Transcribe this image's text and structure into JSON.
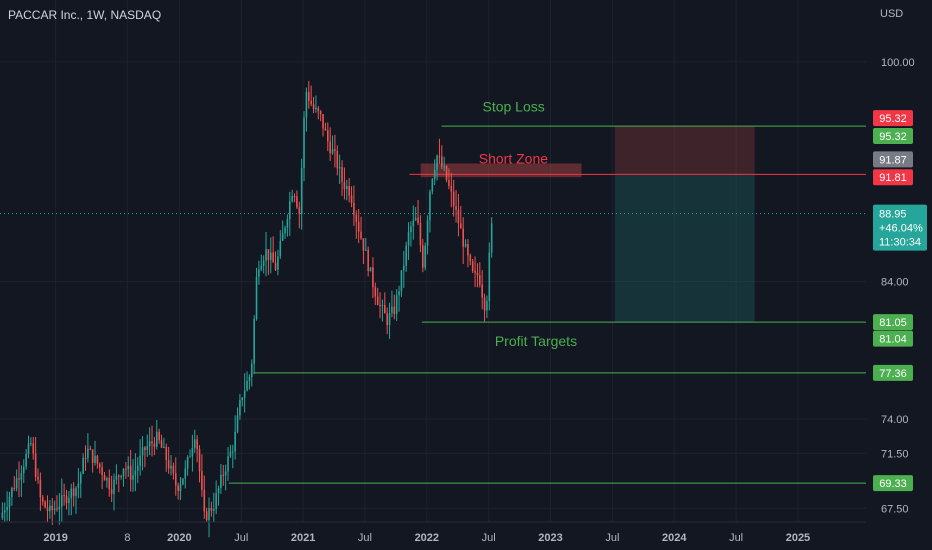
{
  "header": {
    "title": "PACCAR Inc., 1W, NASDAQ",
    "currency": "USD"
  },
  "colors": {
    "background": "#131722",
    "up": "#26a69a",
    "down": "#ef5350",
    "level_line": "#4caf50",
    "short_zone_line": "#f23645",
    "stop_label": "#f23645",
    "target_label": "#4caf50",
    "grey_label": "#787b86",
    "current_label": "#26a69a"
  },
  "chart_data": {
    "type": "candlestick",
    "y_axis": {
      "ticks": [
        {
          "value": 100.0,
          "label": "100.00"
        },
        {
          "value": 84.0,
          "label": "84.00"
        },
        {
          "value": 74.0,
          "label": "74.00"
        },
        {
          "value": 71.5,
          "label": "71.50"
        },
        {
          "value": 67.5,
          "label": "67.50"
        }
      ],
      "currency": "USD",
      "ylim": [
        66.5,
        104.5
      ]
    },
    "x_axis": {
      "ticks": [
        {
          "label": "2019",
          "year": 2019.0
        },
        {
          "label": "8",
          "year": 2019.58
        },
        {
          "label": "2020",
          "year": 2020.0
        },
        {
          "label": "Jul",
          "year": 2020.5
        },
        {
          "label": "2021",
          "year": 2021.0
        },
        {
          "label": "Jul",
          "year": 2021.5
        },
        {
          "label": "2022",
          "year": 2022.0
        },
        {
          "label": "Jul",
          "year": 2022.5
        },
        {
          "label": "2023",
          "year": 2023.0
        },
        {
          "label": "Jul",
          "year": 2023.5
        },
        {
          "label": "2024",
          "year": 2024.0
        },
        {
          "label": "Jul",
          "year": 2024.5
        },
        {
          "label": "2025",
          "year": 2025.0
        }
      ],
      "xlim": [
        2018.55,
        2025.55
      ]
    },
    "price_path": [
      [
        2018.55,
        66.8
      ],
      [
        2018.75,
        71.0
      ],
      [
        2018.8,
        72.2
      ],
      [
        2018.88,
        68.0
      ],
      [
        2018.95,
        67.2
      ],
      [
        2019.05,
        68.0
      ],
      [
        2019.18,
        69.2
      ],
      [
        2019.25,
        71.8
      ],
      [
        2019.35,
        70.6
      ],
      [
        2019.45,
        69.0
      ],
      [
        2019.55,
        70.6
      ],
      [
        2019.62,
        69.8
      ],
      [
        2019.72,
        71.8
      ],
      [
        2019.82,
        72.6
      ],
      [
        2019.9,
        71.0
      ],
      [
        2019.98,
        69.0
      ],
      [
        2020.05,
        70.2
      ],
      [
        2020.13,
        73.2
      ],
      [
        2020.2,
        66.8
      ],
      [
        2020.28,
        67.8
      ],
      [
        2020.36,
        70.2
      ],
      [
        2020.44,
        72.2
      ],
      [
        2020.5,
        75.6
      ],
      [
        2020.58,
        77.4
      ],
      [
        2020.63,
        85.2
      ],
      [
        2020.7,
        86.2
      ],
      [
        2020.78,
        85.0
      ],
      [
        2020.85,
        88.0
      ],
      [
        2020.92,
        91.0
      ],
      [
        2020.97,
        89.0
      ],
      [
        2021.02,
        98.0
      ],
      [
        2021.08,
        96.6
      ],
      [
        2021.14,
        96.0
      ],
      [
        2021.2,
        94.2
      ],
      [
        2021.26,
        93.0
      ],
      [
        2021.32,
        91.2
      ],
      [
        2021.38,
        90.6
      ],
      [
        2021.44,
        88.2
      ],
      [
        2021.5,
        86.2
      ],
      [
        2021.56,
        84.0
      ],
      [
        2021.62,
        82.2
      ],
      [
        2021.68,
        81.2
      ],
      [
        2021.74,
        82.0
      ],
      [
        2021.8,
        84.6
      ],
      [
        2021.86,
        87.8
      ],
      [
        2021.92,
        88.6
      ],
      [
        2021.97,
        85.2
      ],
      [
        2022.03,
        91.2
      ],
      [
        2022.08,
        93.2
      ],
      [
        2022.14,
        92.0
      ],
      [
        2022.2,
        90.2
      ],
      [
        2022.26,
        88.2
      ],
      [
        2022.32,
        86.0
      ],
      [
        2022.38,
        84.2
      ],
      [
        2022.42,
        84.6
      ],
      [
        2022.46,
        82.6
      ],
      [
        2022.48,
        82.0
      ],
      [
        2022.5,
        85.2
      ],
      [
        2022.52,
        87.2
      ],
      [
        2022.53,
        88.95
      ]
    ],
    "current_price": 88.95,
    "levels": [
      {
        "price": 95.32,
        "label": "Stop Loss",
        "x_start": 2022.12,
        "x_end": 2025.55
      },
      {
        "price": 91.81,
        "label": "Short Zone",
        "x_start": 2021.86,
        "x_end": 2025.55
      },
      {
        "price": 81.05,
        "label": "",
        "x_start": 2021.96,
        "x_end": 2025.55
      },
      {
        "price": 77.36,
        "label": "",
        "x_start": 2020.6,
        "x_end": 2025.55
      },
      {
        "price": 69.33,
        "label": "",
        "x_start": 2020.4,
        "x_end": 2025.55
      }
    ],
    "annotations": [
      {
        "text": "Stop Loss",
        "year": 2022.45,
        "price": 96.4
      },
      {
        "text": "Short Zone",
        "year": 2022.42,
        "price": 92.6
      },
      {
        "text": "Profit Targets",
        "year": 2022.55,
        "price": 79.3
      }
    ],
    "short_zone_box": {
      "x_start": 2021.95,
      "x_end": 2023.25,
      "price_top": 92.6,
      "price_bottom": 91.6
    },
    "risk_reward": {
      "x_start": 2023.52,
      "x_end": 2024.65,
      "stop": 95.32,
      "entry": 91.81,
      "target": 81.05
    },
    "price_labels": [
      {
        "text": "95.32",
        "price": 95.9,
        "color": "stop_label"
      },
      {
        "text": "95.32",
        "price": 94.6,
        "color": "target_label"
      },
      {
        "text": "91.87",
        "price": 92.9,
        "color": "grey_label"
      },
      {
        "text": "91.81",
        "price": 91.6,
        "color": "stop_label"
      },
      {
        "text": "81.05",
        "price": 81.05,
        "color": "target_label"
      },
      {
        "text": "81.04",
        "price": 79.85,
        "color": "target_label"
      },
      {
        "text": "77.36",
        "price": 77.36,
        "color": "target_label"
      },
      {
        "text": "69.33",
        "price": 69.33,
        "color": "target_label"
      }
    ],
    "current_label": {
      "price_text": "88.95",
      "change_text": "+46.04%",
      "countdown_text": "11:30:34"
    }
  }
}
